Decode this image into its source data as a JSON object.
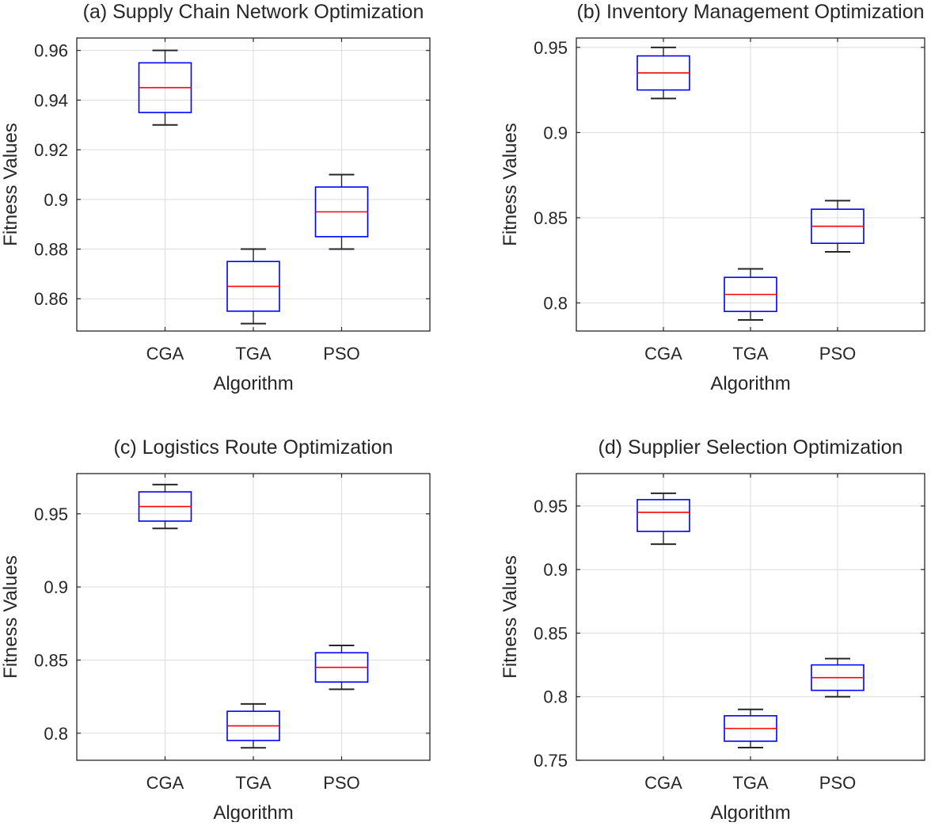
{
  "figure": {
    "ylabel": "Fitness Values",
    "xlabel": "Algorithm"
  },
  "chart_data": [
    {
      "type": "box",
      "title": "(a) Supply Chain Network Optimization",
      "xlabel": "Algorithm",
      "ylabel": "Fitness Values",
      "categories": [
        "CGA",
        "TGA",
        "PSO"
      ],
      "ylim": [
        0.847,
        0.965
      ],
      "yticks": [
        0.86,
        0.88,
        0.9,
        0.92,
        0.94,
        0.96
      ],
      "ytick_labels": [
        "0.86",
        "0.88",
        "0.9",
        "0.92",
        "0.94",
        "0.96"
      ],
      "grid": true,
      "boxes": [
        {
          "min": 0.93,
          "q1": 0.935,
          "median": 0.945,
          "q3": 0.955,
          "max": 0.96
        },
        {
          "min": 0.85,
          "q1": 0.855,
          "median": 0.865,
          "q3": 0.875,
          "max": 0.88
        },
        {
          "min": 0.88,
          "q1": 0.885,
          "median": 0.895,
          "q3": 0.905,
          "max": 0.91
        }
      ]
    },
    {
      "type": "box",
      "title": "(b) Inventory Management Optimization",
      "xlabel": "Algorithm",
      "ylabel": "Fitness Values",
      "categories": [
        "CGA",
        "TGA",
        "PSO"
      ],
      "ylim": [
        0.7835,
        0.9555
      ],
      "yticks": [
        0.8,
        0.85,
        0.9,
        0.95
      ],
      "ytick_labels": [
        "0.8",
        "0.85",
        "0.9",
        "0.95"
      ],
      "grid": true,
      "boxes": [
        {
          "min": 0.92,
          "q1": 0.925,
          "median": 0.935,
          "q3": 0.945,
          "max": 0.95
        },
        {
          "min": 0.79,
          "q1": 0.795,
          "median": 0.805,
          "q3": 0.815,
          "max": 0.82
        },
        {
          "min": 0.83,
          "q1": 0.835,
          "median": 0.845,
          "q3": 0.855,
          "max": 0.86
        }
      ]
    },
    {
      "type": "box",
      "title": "(c) Logistics Route Optimization",
      "xlabel": "Algorithm",
      "ylabel": "Fitness Values",
      "categories": [
        "CGA",
        "TGA",
        "PSO"
      ],
      "ylim": [
        0.7815,
        0.9775
      ],
      "yticks": [
        0.8,
        0.85,
        0.9,
        0.95
      ],
      "ytick_labels": [
        "0.8",
        "0.85",
        "0.9",
        "0.95"
      ],
      "grid": true,
      "boxes": [
        {
          "min": 0.94,
          "q1": 0.945,
          "median": 0.955,
          "q3": 0.965,
          "max": 0.97
        },
        {
          "min": 0.79,
          "q1": 0.795,
          "median": 0.805,
          "q3": 0.815,
          "max": 0.82
        },
        {
          "min": 0.83,
          "q1": 0.835,
          "median": 0.845,
          "q3": 0.855,
          "max": 0.86
        }
      ]
    },
    {
      "type": "box",
      "title": "(d) Supplier Selection Optimization",
      "xlabel": "Algorithm",
      "ylabel": "Fitness Values",
      "categories": [
        "CGA",
        "TGA",
        "PSO"
      ],
      "ylim": [
        0.75,
        0.9755
      ],
      "yticks": [
        0.75,
        0.8,
        0.85,
        0.9,
        0.95
      ],
      "ytick_labels": [
        "0.75",
        "0.8",
        "0.85",
        "0.9",
        "0.95"
      ],
      "grid": true,
      "boxes": [
        {
          "min": 0.92,
          "q1": 0.93,
          "median": 0.945,
          "q3": 0.955,
          "max": 0.96
        },
        {
          "min": 0.76,
          "q1": 0.765,
          "median": 0.775,
          "q3": 0.785,
          "max": 0.79
        },
        {
          "min": 0.8,
          "q1": 0.805,
          "median": 0.815,
          "q3": 0.825,
          "max": 0.83
        }
      ]
    }
  ],
  "colors": {
    "box": "#0000ff",
    "median": "#ff0000",
    "whisker": "#262626",
    "axes": "#262626",
    "grid": "#dcdcdc"
  }
}
